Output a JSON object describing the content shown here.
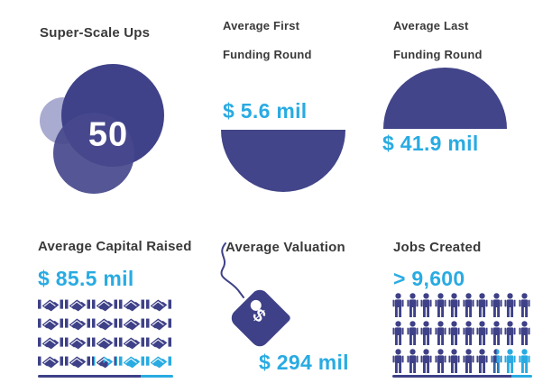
{
  "colors": {
    "indigo": "#3e4187",
    "indigo_shape": "#424589",
    "lavender": "#a9abd0",
    "cyan": "#29abe2",
    "title_text": "#3a3a3a",
    "background": "#ffffff"
  },
  "panels": {
    "super_scale_ups": {
      "title": "Super-Scale Ups",
      "count": "50"
    },
    "first_funding_round": {
      "title_line1": "Average First",
      "title_line2": "Funding Round",
      "value": "$ 5.6 mil"
    },
    "last_funding_round": {
      "title_line1": "Average Last",
      "title_line2": "Funding Round",
      "value": "$ 41.9 mil"
    },
    "capital_raised": {
      "title": "Average Capital Raised",
      "value": "$ 85.5 mil",
      "icon": "handshake-icon",
      "icon_rows": [
        "ddddd",
        "ddddd",
        "ddddd",
        "ddscc"
      ],
      "underline_split_pct": 76
    },
    "valuation": {
      "title": "Average Valuation",
      "value": "$ 294 mil",
      "tag_symbol": "$"
    },
    "jobs_created": {
      "title": "Jobs Created",
      "value": "> 9,600",
      "icon": "person-icon",
      "icon_rows": [
        "dddddddddd",
        "dddddddddd",
        "dddddddscc"
      ],
      "underline_split_pct": 85
    }
  },
  "chart_data": {
    "type": "table",
    "title": "Super-Scale Ups",
    "categories": [
      "Super-Scale Ups (count)",
      "Average First Funding Round ($ mil)",
      "Average Last Funding Round ($ mil)",
      "Average Capital Raised ($ mil)",
      "Average Valuation ($ mil)",
      "Jobs Created"
    ],
    "values": [
      50,
      5.6,
      41.9,
      85.5,
      294,
      9600
    ],
    "notes": {
      "jobs_created_is_minimum": "> 9,600",
      "pictograph_handshakes_total": 20,
      "pictograph_handshakes_highlighted_cyan": 2.5,
      "pictograph_people_total": 30,
      "pictograph_people_highlighted_cyan": 2.5
    }
  }
}
